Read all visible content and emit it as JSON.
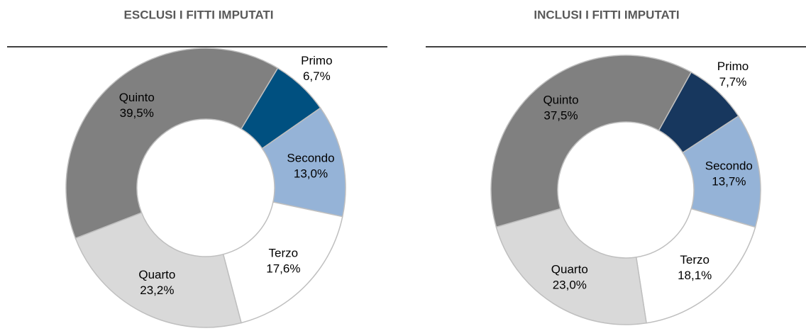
{
  "chart_data": [
    {
      "type": "donut",
      "title": "ESCLUSI I FITTI IMPUTATI",
      "categories": [
        "Primo",
        "Secondo",
        "Terzo",
        "Quarto",
        "Quinto"
      ],
      "values": [
        6.7,
        13.0,
        17.6,
        23.2,
        39.5
      ],
      "value_labels": [
        "6,7%",
        "13,0%",
        "17,6%",
        "23,2%",
        "39,5%"
      ],
      "colors": [
        "#005080",
        "#95b3d7",
        "#ffffff",
        "#d9d9d9",
        "#808080"
      ]
    },
    {
      "type": "donut",
      "title": "INCLUSI I FITTI IMPUTATI",
      "categories": [
        "Primo",
        "Secondo",
        "Terzo",
        "Quarto",
        "Quinto"
      ],
      "values": [
        7.7,
        13.7,
        18.1,
        23.0,
        37.5
      ],
      "value_labels": [
        "7,7%",
        "13,7%",
        "18,1%",
        "23,0%",
        "37,5%"
      ],
      "colors": [
        "#17375e",
        "#95b3d7",
        "#ffffff",
        "#d9d9d9",
        "#808080"
      ]
    }
  ]
}
